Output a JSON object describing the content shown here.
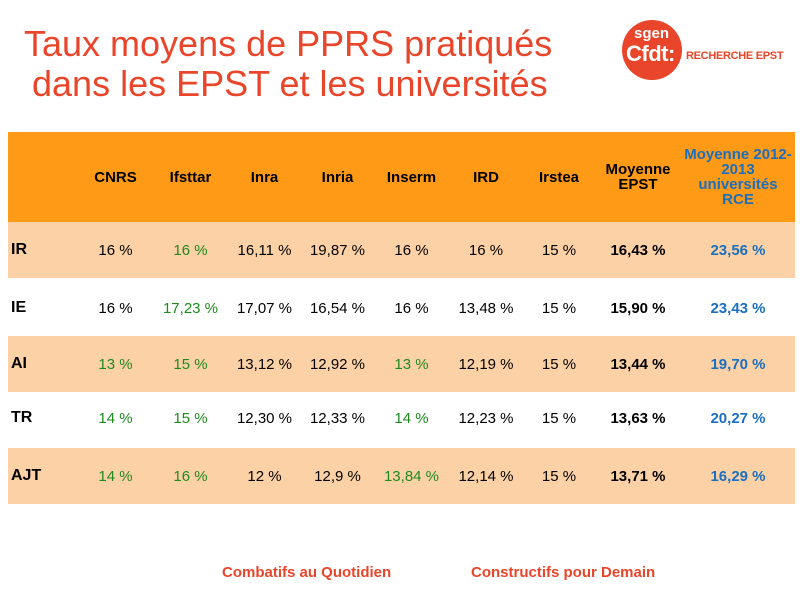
{
  "title": {
    "line1": "Taux moyens de PPRS pratiqués",
    "line2": "dans les EPST et les universités"
  },
  "logo": {
    "sgen": "sgen",
    "cfdt": "Cfdt:",
    "subtitle": "RECHERCHE EPST"
  },
  "table": {
    "headers": [
      "",
      "CNRS",
      "Ifsttar",
      "Inra",
      "Inria",
      "Inserm",
      "IRD",
      "Irstea",
      "Moyenne EPST",
      "Moyenne 2012-2013 universités RCE"
    ],
    "rows": [
      {
        "label": "IR",
        "values": [
          "16 %",
          "16 %",
          "16,11 %",
          "19,87 %",
          "16 %",
          "16 %",
          "15 %",
          "16,43 %",
          "23,56 %"
        ],
        "green": [
          false,
          true,
          false,
          false,
          false,
          false,
          false
        ]
      },
      {
        "label": "IE",
        "values": [
          "16 %",
          "17,23 %",
          "17,07 %",
          "16,54 %",
          "16 %",
          "13,48 %",
          "15 %",
          "15,90 %",
          "23,43 %"
        ],
        "green": [
          false,
          true,
          false,
          false,
          false,
          false,
          false
        ]
      },
      {
        "label": "AI",
        "values": [
          "13 %",
          "15 %",
          "13,12 %",
          "12,92 %",
          "13 %",
          "12,19 %",
          "15 %",
          "13,44 %",
          "19,70 %"
        ],
        "green": [
          true,
          true,
          false,
          false,
          true,
          false,
          false
        ]
      },
      {
        "label": "TR",
        "values": [
          "14 %",
          "15 %",
          "12,30 %",
          "12,33 %",
          "14 %",
          "12,23 %",
          "15 %",
          "13,63 %",
          "20,27 %"
        ],
        "green": [
          true,
          true,
          false,
          false,
          true,
          false,
          false
        ]
      },
      {
        "label": "AJT",
        "values": [
          "14 %",
          "16 %",
          "12 %",
          "12,9 %",
          "13,84 %",
          "12,14 %",
          "15 %",
          "13,71 %",
          "16,29 %"
        ],
        "green": [
          true,
          true,
          false,
          false,
          true,
          false,
          false
        ]
      }
    ]
  },
  "footer": {
    "left": "Combatifs au Quotidien",
    "right": "Constructifs pour Demain"
  },
  "colors": {
    "title": "#e8452a",
    "header_band": "#ff9a16",
    "light_band": "#fdd1a6",
    "green_value": "#1e8a1e",
    "blue_value": "#1a6fbf"
  }
}
